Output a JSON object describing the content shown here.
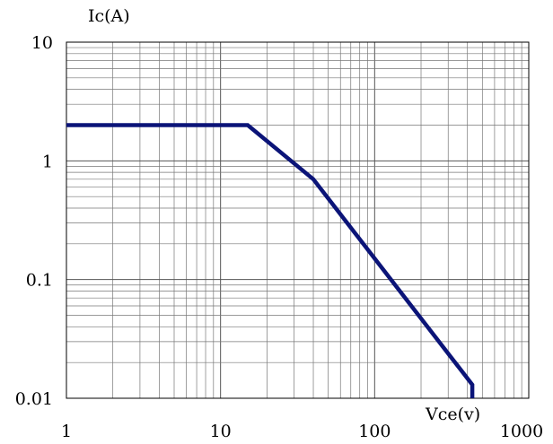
{
  "chart_data": {
    "type": "line",
    "scale": {
      "x": "log",
      "y": "log"
    },
    "grid": true,
    "xlabel": "Vce(v)",
    "ylabel": "Ic(A)",
    "xlim": [
      1,
      1000
    ],
    "ylim": [
      0.01,
      10
    ],
    "x_ticks": [
      {
        "value": 1,
        "label": "1"
      },
      {
        "value": 10,
        "label": "10"
      },
      {
        "value": 100,
        "label": "100"
      },
      {
        "value": 1000,
        "label": "1000"
      }
    ],
    "y_ticks": [
      {
        "value": 10,
        "label": "10"
      },
      {
        "value": 1,
        "label": "1"
      },
      {
        "value": 0.1,
        "label": "0.1"
      },
      {
        "value": 0.01,
        "label": "0.01"
      }
    ],
    "series": [
      {
        "color": "#0b1478",
        "points": [
          {
            "x": 1,
            "y": 2
          },
          {
            "x": 15,
            "y": 2
          },
          {
            "x": 40,
            "y": 0.7
          },
          {
            "x": 430,
            "y": 0.013
          },
          {
            "x": 430,
            "y": 0.01
          }
        ]
      }
    ]
  }
}
